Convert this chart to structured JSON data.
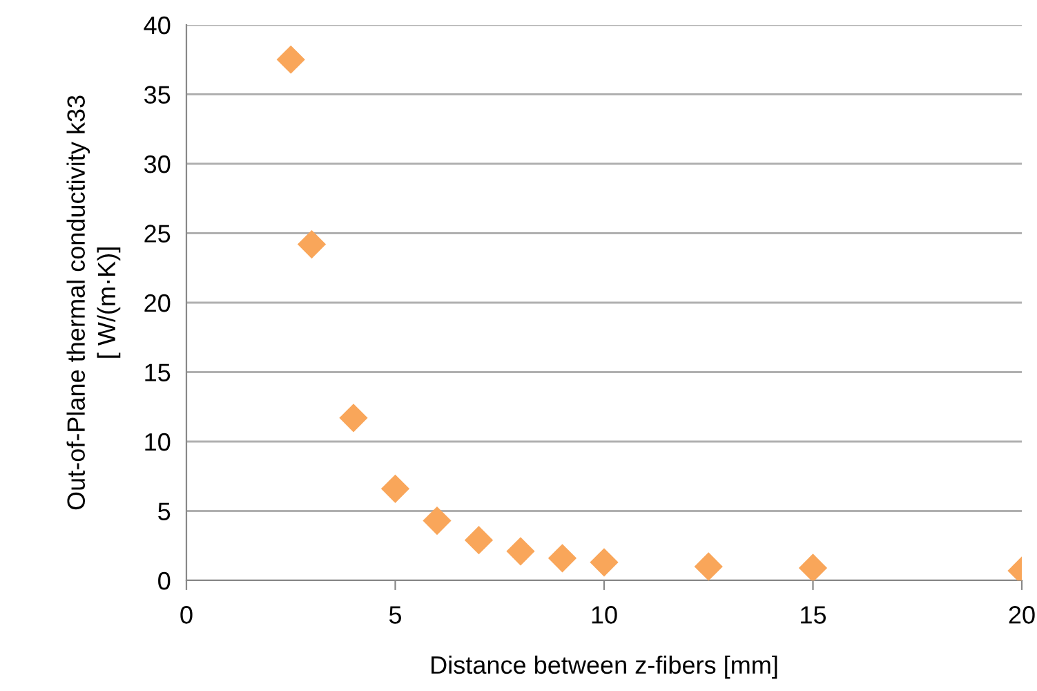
{
  "chart_data": {
    "type": "scatter",
    "xlabel": "Distance between z-fibers [mm]",
    "ylabel": "Out-of-Plane thermal conductivity k33\n[ W/(m·K)]",
    "x": [
      2.5,
      3,
      4,
      5,
      6,
      7,
      8,
      9,
      10,
      12.5,
      15,
      20
    ],
    "series": [
      {
        "color": "#f9a65a",
        "values": [
          37.5,
          24.2,
          11.7,
          6.6,
          4.3,
          2.9,
          2.1,
          1.6,
          1.3,
          1.0,
          0.9,
          0.7
        ]
      }
    ],
    "xlim": [
      0,
      20
    ],
    "xticks": [
      0,
      5,
      10,
      15,
      20
    ],
    "ylim": [
      0,
      40
    ],
    "yticks": [
      0,
      5,
      10,
      15,
      20,
      25,
      30,
      35,
      40
    ],
    "grid": "y",
    "marker": "diamond",
    "legend": false
  }
}
